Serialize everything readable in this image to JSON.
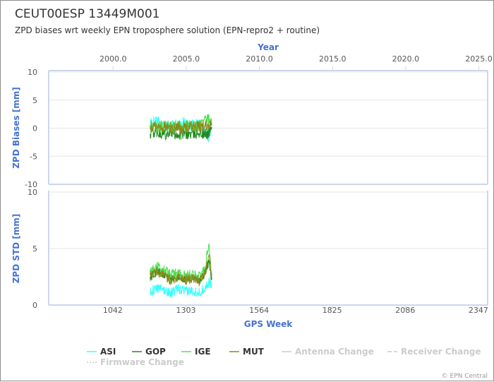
{
  "header": {
    "title": "CEUT00ESP 13449M001",
    "subtitle": "ZPD biases wrt weekly EPN troposphere solution (EPN-repro2 + routine)"
  },
  "credit": "© EPN Central",
  "chart_data": [
    {
      "type": "line",
      "name": "bias-panel",
      "ylabel": "ZPD Biases [mm]",
      "ylim": [
        -10,
        10
      ],
      "yticks": [
        -10,
        -5,
        0,
        5,
        10
      ],
      "top_axis": {
        "label": "Year",
        "range": [
          1995.6,
          2025.6
        ],
        "ticks": [
          "2000.0",
          "2005.0",
          "2010.0",
          "2015.0",
          "2020.0",
          "2025.0"
        ],
        "tick_values": [
          2000,
          2005,
          2010,
          2015,
          2020,
          2025
        ]
      },
      "x_range": [
        813,
        2380
      ],
      "series": [
        {
          "name": "ASI",
          "color": "#33ffff",
          "x": [
            1175,
            1200,
            1225,
            1250,
            1275,
            1300,
            1325,
            1350,
            1370,
            1385,
            1395
          ],
          "y": [
            0.8,
            1.2,
            0.5,
            0.3,
            0.6,
            0.9,
            0.4,
            0.7,
            0.2,
            -2.5,
            1.0
          ]
        },
        {
          "name": "GOP",
          "color": "#1f8a1f",
          "x": [
            1175,
            1200,
            1225,
            1250,
            1275,
            1300,
            1325,
            1350,
            1370,
            1385,
            1395
          ],
          "y": [
            -0.8,
            -0.5,
            -1.0,
            -0.6,
            -1.2,
            -0.9,
            -1.1,
            -0.7,
            -1.3,
            -0.8,
            0.2
          ]
        },
        {
          "name": "IGE",
          "color": "#4fe04f",
          "x": [
            1175,
            1200,
            1225,
            1250,
            1275,
            1300,
            1325,
            1350,
            1370,
            1385,
            1395
          ],
          "y": [
            0.5,
            0.2,
            0.4,
            0.1,
            0.3,
            0.5,
            0.2,
            0.4,
            1.2,
            1.5,
            0.6
          ]
        },
        {
          "name": "MUT",
          "color": "#8a8a1a",
          "x": [
            1175,
            1200,
            1225,
            1250,
            1275,
            1300,
            1325,
            1350,
            1370,
            1385,
            1395
          ],
          "y": [
            0.3,
            0.1,
            0.2,
            0.0,
            0.2,
            0.1,
            0.3,
            0.2,
            0.5,
            0.8,
            0.4
          ]
        }
      ]
    },
    {
      "type": "line",
      "name": "std-panel",
      "ylabel": "ZPD STD [mm]",
      "xlabel": "GPS Week",
      "ylim": [
        0,
        10
      ],
      "yticks": [
        0,
        5,
        10
      ],
      "xticks": [
        1042,
        1303,
        1564,
        1825,
        2086,
        2347
      ],
      "x_range": [
        813,
        2380
      ],
      "series": [
        {
          "name": "ASI",
          "color": "#33ffff",
          "x": [
            1175,
            1200,
            1225,
            1250,
            1275,
            1300,
            1325,
            1350,
            1370,
            1385,
            1395
          ],
          "y": [
            1.2,
            1.5,
            1.3,
            1.1,
            1.4,
            1.2,
            1.3,
            1.1,
            1.5,
            2.0,
            1.8
          ]
        },
        {
          "name": "GOP",
          "color": "#1f8a1f",
          "x": [
            1175,
            1200,
            1225,
            1250,
            1275,
            1300,
            1325,
            1350,
            1370,
            1385,
            1395
          ],
          "y": [
            2.5,
            3.0,
            2.8,
            2.4,
            2.6,
            2.3,
            2.5,
            2.2,
            2.8,
            4.0,
            2.2
          ]
        },
        {
          "name": "IGE",
          "color": "#4fe04f",
          "x": [
            1175,
            1200,
            1225,
            1250,
            1275,
            1300,
            1325,
            1350,
            1370,
            1385,
            1395
          ],
          "y": [
            3.0,
            3.4,
            3.1,
            2.7,
            2.9,
            2.6,
            2.8,
            2.5,
            3.2,
            5.5,
            2.5
          ]
        },
        {
          "name": "MUT",
          "color": "#8a8a1a",
          "x": [
            1175,
            1200,
            1225,
            1250,
            1275,
            1300,
            1325,
            1350,
            1370,
            1385,
            1395
          ],
          "y": [
            2.8,
            2.9,
            2.6,
            2.2,
            2.5,
            2.2,
            2.4,
            2.1,
            2.7,
            4.6,
            2.6
          ]
        }
      ]
    }
  ],
  "legend": {
    "items": [
      {
        "label": "ASI",
        "color": "#33ffff",
        "dash": "",
        "active": true
      },
      {
        "label": "GOP",
        "color": "#1f8a1f",
        "dash": "",
        "active": true
      },
      {
        "label": "IGE",
        "color": "#4fe04f",
        "dash": "",
        "active": true
      },
      {
        "label": "MUT",
        "color": "#8a8a1a",
        "dash": "",
        "active": true
      },
      {
        "label": "Antenna Change",
        "color": "#cccccc",
        "dash": "",
        "active": false
      },
      {
        "label": "Receiver Change",
        "color": "#cccccc",
        "dash": "6,3",
        "active": false
      },
      {
        "label": "Firmware Change",
        "color": "#cccccc",
        "dash": "2,2",
        "active": false
      }
    ]
  }
}
